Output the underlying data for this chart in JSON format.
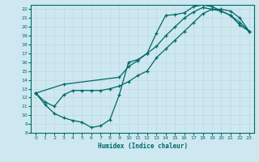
{
  "xlabel": "Humidex (Indice chaleur)",
  "bg_color": "#cde8f0",
  "line_color": "#006868",
  "grid_color": "#c0dce0",
  "xlim": [
    -0.5,
    23.5
  ],
  "ylim": [
    8,
    22.5
  ],
  "xticks": [
    0,
    1,
    2,
    3,
    4,
    5,
    6,
    7,
    8,
    9,
    10,
    11,
    12,
    13,
    14,
    15,
    16,
    17,
    18,
    19,
    20,
    21,
    22,
    23
  ],
  "yticks": [
    8,
    9,
    10,
    11,
    12,
    13,
    14,
    15,
    16,
    17,
    18,
    19,
    20,
    21,
    22
  ],
  "line1_x": [
    0,
    1,
    2,
    3,
    4,
    5,
    6,
    7,
    8,
    9,
    10,
    11,
    12,
    13,
    14,
    15,
    16,
    17,
    18,
    19,
    20,
    21,
    22,
    23
  ],
  "line1_y": [
    12.5,
    11.2,
    10.2,
    9.7,
    9.4,
    9.2,
    8.6,
    8.8,
    9.5,
    12.3,
    16.0,
    16.3,
    17.0,
    19.3,
    21.3,
    21.4,
    21.6,
    22.3,
    22.5,
    22.3,
    21.8,
    21.3,
    20.5,
    19.5
  ],
  "line2_x": [
    0,
    1,
    2,
    3,
    4,
    5,
    6,
    7,
    8,
    9,
    10,
    11,
    12,
    13,
    14,
    15,
    16,
    17,
    18,
    19,
    20,
    21,
    22,
    23
  ],
  "line2_y": [
    12.5,
    11.5,
    11.0,
    12.3,
    12.8,
    12.8,
    12.8,
    12.8,
    13.0,
    13.3,
    13.8,
    14.5,
    15.0,
    16.5,
    17.5,
    18.5,
    19.5,
    20.5,
    21.5,
    22.0,
    22.0,
    21.8,
    21.0,
    19.5
  ],
  "line3_x": [
    0,
    3,
    9,
    10,
    11,
    12,
    13,
    14,
    15,
    16,
    17,
    18,
    19,
    20,
    21,
    22,
    23
  ],
  "line3_y": [
    12.5,
    13.5,
    14.3,
    15.5,
    16.2,
    17.0,
    17.8,
    19.0,
    20.0,
    21.0,
    21.7,
    22.2,
    22.0,
    21.8,
    21.3,
    20.2,
    19.5
  ]
}
